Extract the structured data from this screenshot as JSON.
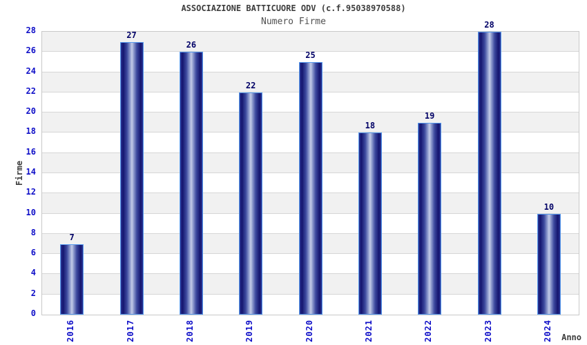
{
  "title": "ASSOCIAZIONE BATTICUORE ODV (c.f.95038970588)",
  "subtitle": "Numero Firme",
  "chart_data": {
    "type": "bar",
    "title": "ASSOCIAZIONE BATTICUORE ODV (c.f.95038970588)",
    "subtitle": "Numero Firme",
    "categories": [
      "2016",
      "2017",
      "2018",
      "2019",
      "2020",
      "2021",
      "2022",
      "2023",
      "2024"
    ],
    "values": [
      7,
      27,
      26,
      22,
      25,
      18,
      19,
      28,
      10
    ],
    "xlabel": "Anno",
    "ylabel": "Firme",
    "ylim": [
      0,
      28
    ],
    "ytick_step": 2,
    "yticks": [
      0,
      2,
      4,
      6,
      8,
      10,
      12,
      14,
      16,
      18,
      20,
      22,
      24,
      26,
      28
    ],
    "grid": "horizontal-bands",
    "legend": "none",
    "colors": {
      "axis_tick_label": "#0f0fc8",
      "value_label": "#000066",
      "title_text": "#3d3d3d",
      "subtitle_text": "#4f4f4f",
      "bar_border": "#5599ee",
      "bar_edge": "#2c3796",
      "bar_dark": "#14146e",
      "bar_mid": "#8f9cce",
      "bar_light": "#c4cce8",
      "band_fill": "#f1f1f1",
      "grid_line": "#d6d6d6",
      "plot_border": "#c8c8c8"
    }
  }
}
